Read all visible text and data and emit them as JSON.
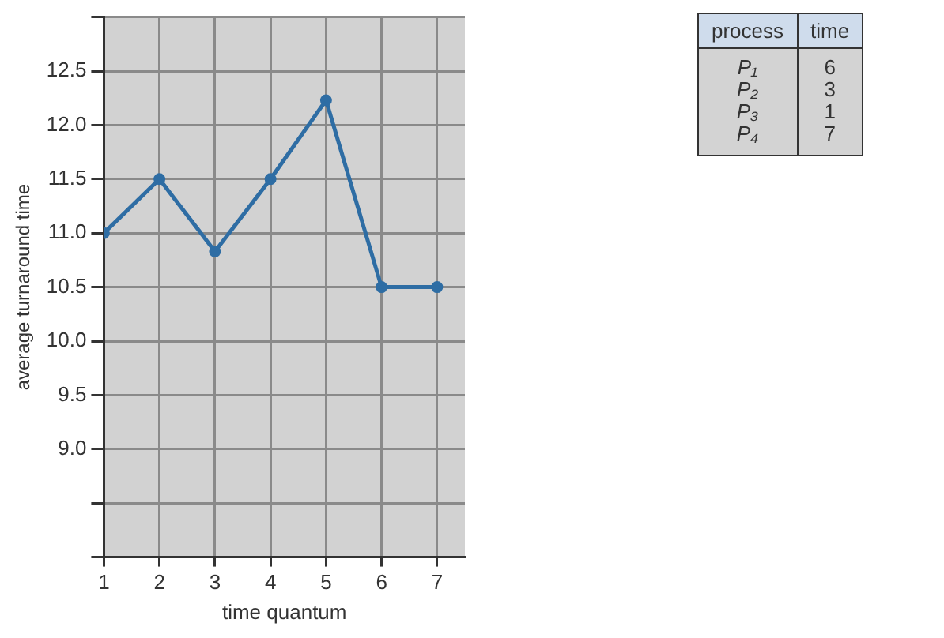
{
  "chart_data": [
    {
      "type": "line",
      "xlabel": "time quantum",
      "ylabel": "average turnaround time",
      "x": [
        1,
        2,
        3,
        4,
        5,
        6,
        7
      ],
      "values": [
        11.0,
        11.5,
        10.83,
        11.5,
        12.23,
        10.5,
        10.5
      ],
      "color": "#2e6da4",
      "xlim": [
        1,
        7.5
      ],
      "xticks": [
        1,
        2,
        3,
        4,
        5,
        6,
        7
      ],
      "ylim": [
        8,
        13
      ],
      "yticks": [
        {
          "value": 8,
          "label": null
        },
        {
          "value": 8.5,
          "label": null
        },
        {
          "value": 9,
          "label": "9.0"
        },
        {
          "value": 9.5,
          "label": "9.5"
        },
        {
          "value": 10,
          "label": "10.0"
        },
        {
          "value": 10.5,
          "label": "10.5"
        },
        {
          "value": 11,
          "label": "11.0"
        },
        {
          "value": 11.5,
          "label": "11.5"
        },
        {
          "value": 12,
          "label": "12.0"
        },
        {
          "value": 12.5,
          "label": "12.5"
        },
        {
          "value": 13,
          "label": null
        }
      ],
      "grid": true,
      "marker": "circle",
      "line_style": "solid"
    },
    {
      "type": "other",
      "xlabel": "process",
      "ylabel": "time",
      "categories": [
        "P₁",
        "P₂",
        "P₃",
        "P₄"
      ],
      "values": [
        6,
        3,
        1,
        7
      ],
      "data_labels": true
    }
  ]
}
